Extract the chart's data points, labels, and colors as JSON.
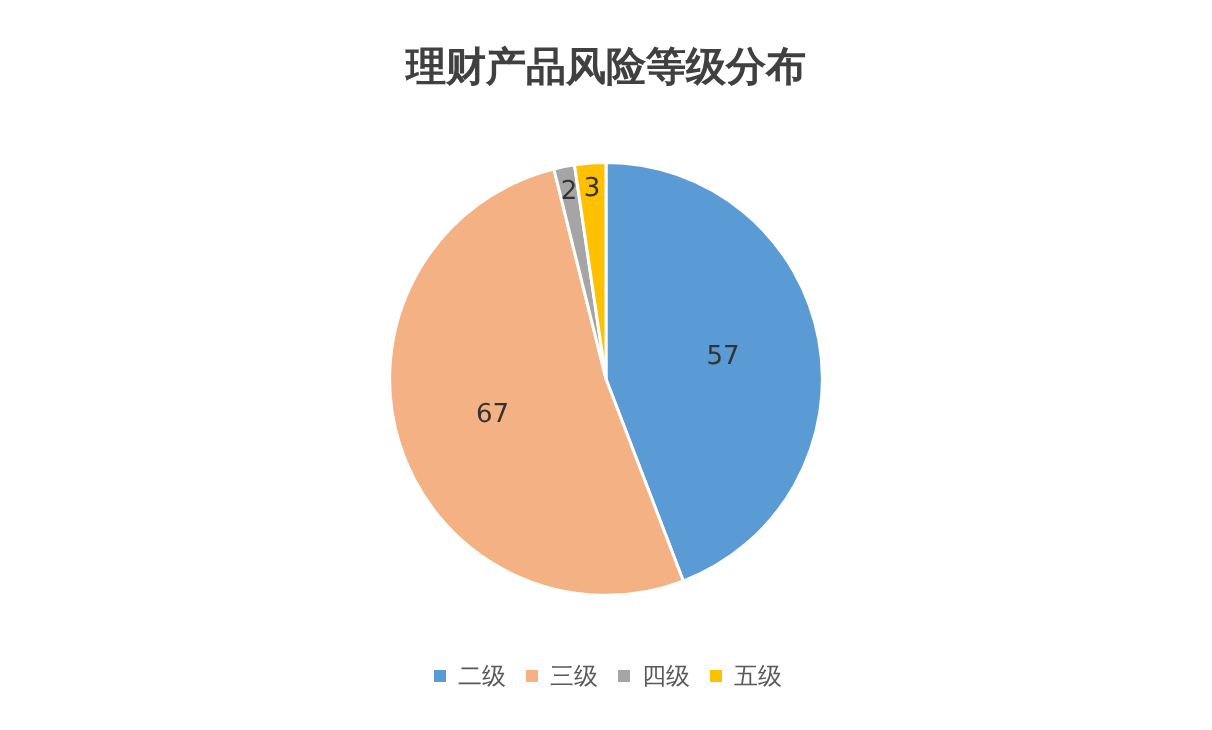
{
  "chart_data": {
    "type": "pie",
    "title": "理财产品风险等级分布",
    "categories": [
      "二级",
      "三级",
      "四级",
      "五级"
    ],
    "values": [
      57,
      67,
      2,
      3
    ],
    "colors": [
      "#5b9bd5",
      "#f4b183",
      "#a5a5a5",
      "#ffc000"
    ],
    "data_labels": true,
    "legend": "bottom"
  }
}
